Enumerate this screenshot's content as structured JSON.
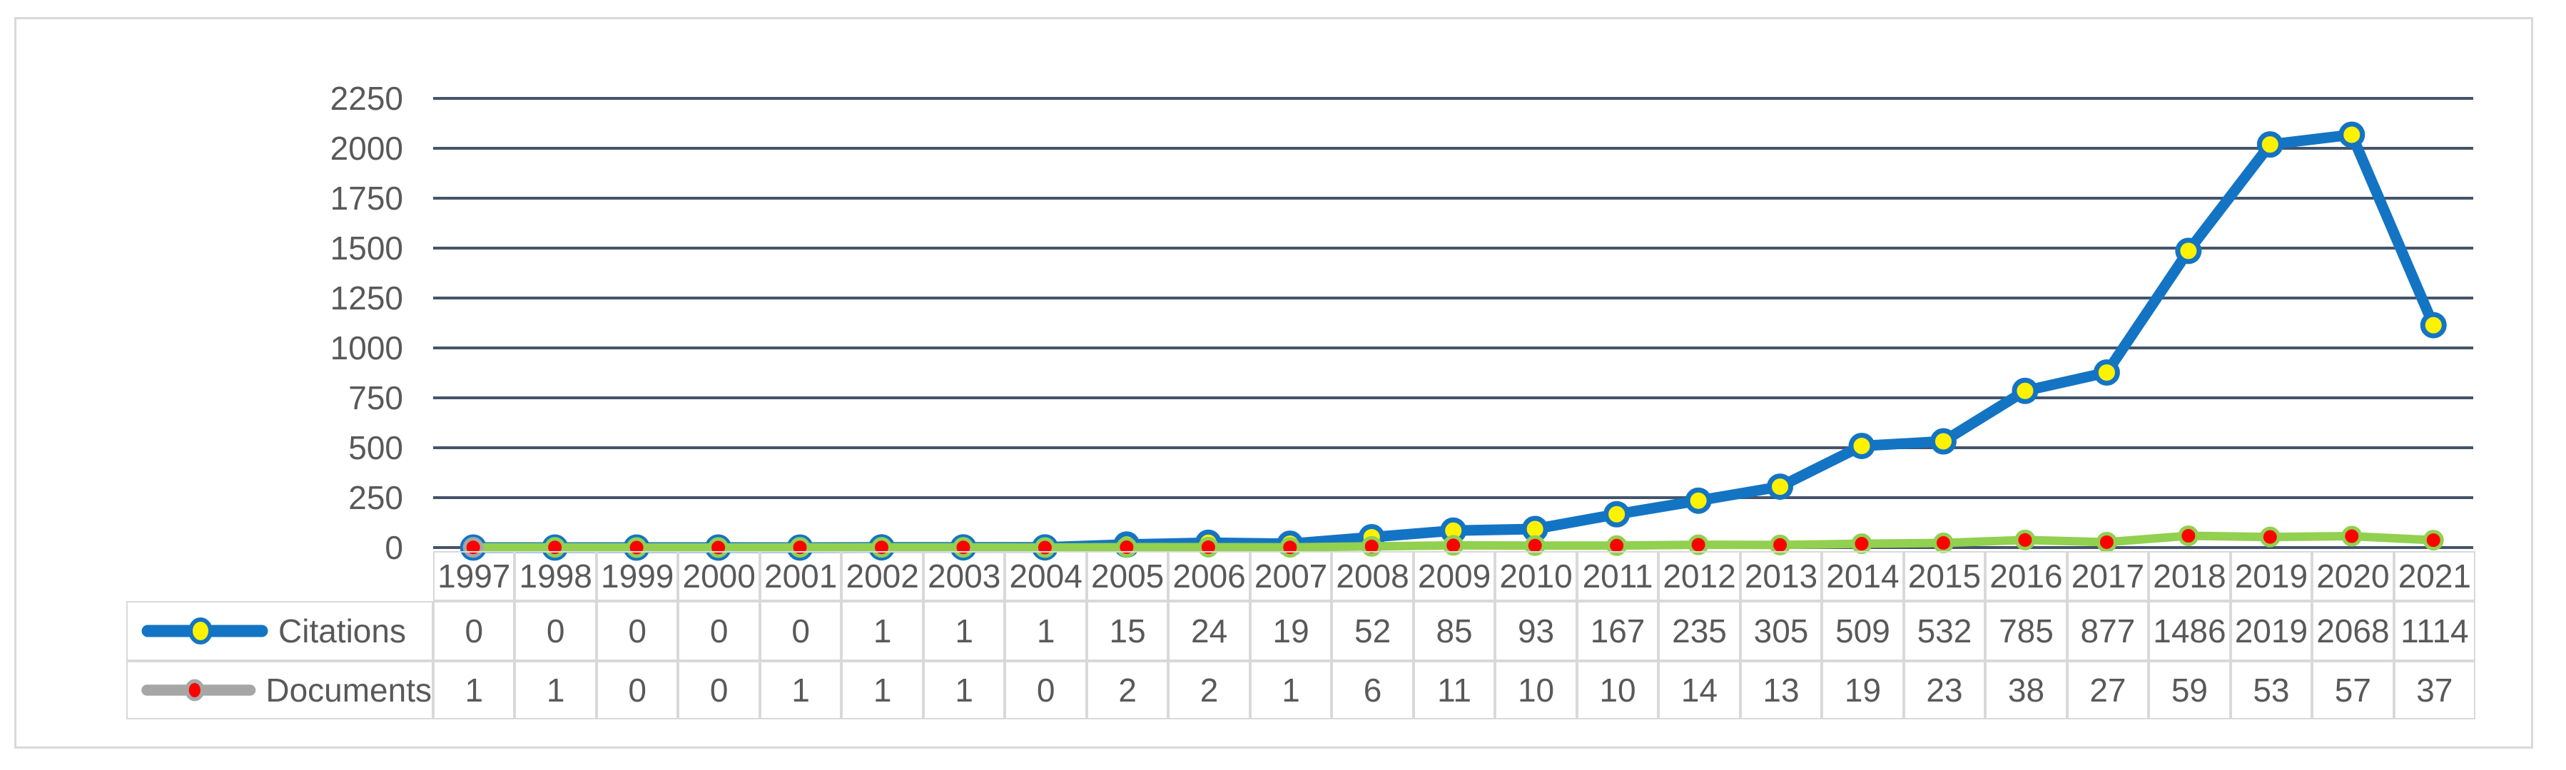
{
  "figure": {
    "background": "#FFFFFF",
    "border_color": "#D9D9D9"
  },
  "axis": {
    "yticks": [
      "0",
      "250",
      "500",
      "750",
      "1000",
      "1250",
      "1500",
      "1750",
      "2000",
      "2250"
    ],
    "tick_text_color": "#595959"
  },
  "chart_data": {
    "type": "line",
    "title": "",
    "xlabel": "",
    "ylabel": "",
    "categories": [
      "1997",
      "1998",
      "1999",
      "2000",
      "2001",
      "2002",
      "2003",
      "2004",
      "2005",
      "2006",
      "2007",
      "2008",
      "2009",
      "2010",
      "2011",
      "2012",
      "2013",
      "2014",
      "2015",
      "2016",
      "2017",
      "2018",
      "2019",
      "2020",
      "2021"
    ],
    "ylim": [
      0,
      2250
    ],
    "ytick_step": 250,
    "grid": "horizontal",
    "gridline_color": "#44546A",
    "legend_position": "left-of-table-rows",
    "series": [
      {
        "name": "Citations",
        "values": [
          0,
          0,
          0,
          0,
          0,
          1,
          1,
          1,
          15,
          24,
          19,
          52,
          85,
          93,
          167,
          235,
          305,
          509,
          532,
          785,
          877,
          1486,
          2019,
          2068,
          1114
        ],
        "line_color": "#1474C4",
        "marker_fill": "#FFF200",
        "marker_ring_color": "#1474C4",
        "legend_line_color": "#1474C4",
        "legend_marker_fill": "#FFF200",
        "legend_marker_ring_color": "#1474C4"
      },
      {
        "name": "Documents",
        "values": [
          1,
          1,
          0,
          0,
          1,
          1,
          1,
          0,
          2,
          2,
          1,
          6,
          11,
          10,
          10,
          14,
          13,
          19,
          23,
          38,
          27,
          59,
          53,
          57,
          37
        ],
        "line_color": "#92D050",
        "marker_fill": "#FF0000",
        "marker_ring_color": "#92D050",
        "first_marker_ring_color": "#A6A6A6",
        "legend_line_color": "#A6A6A6",
        "legend_marker_fill": "#FF0000",
        "legend_marker_ring_color": "#A6A6A6"
      }
    ]
  },
  "table": {
    "border_color": "#D9D9D9",
    "text_color": "#595959"
  }
}
